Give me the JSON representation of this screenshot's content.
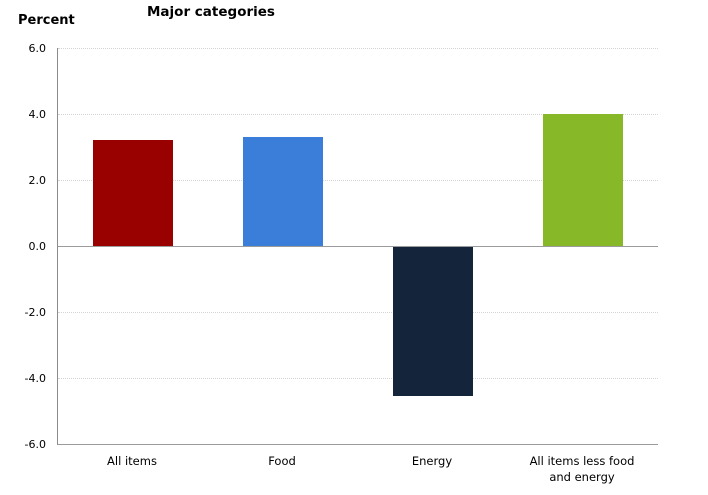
{
  "chart_data": {
    "type": "bar",
    "title": "Major categories",
    "ylabel": "Percent",
    "categories": [
      "All items",
      "Food",
      "Energy",
      "All items less food and energy"
    ],
    "category_lines": [
      [
        "All items"
      ],
      [
        "Food"
      ],
      [
        "Energy"
      ],
      [
        "All items less food",
        "and energy"
      ]
    ],
    "values": [
      3.2,
      3.3,
      -4.5,
      4.0
    ],
    "bar_colors": [
      "#990000",
      "#3a7ed9",
      "#14243a",
      "#87b827"
    ],
    "ylim": [
      -6.0,
      6.0
    ],
    "ytick_step": 2.0,
    "ytick_labels": [
      "6.0",
      "4.0",
      "2.0",
      "0.0",
      "-2.0",
      "-4.0",
      "-6.0"
    ],
    "ytick_values": [
      6.0,
      4.0,
      2.0,
      0.0,
      -2.0,
      -4.0,
      -6.0
    ],
    "grid": "horizontal-dotted",
    "zero_line": "solid",
    "legend": "none"
  }
}
